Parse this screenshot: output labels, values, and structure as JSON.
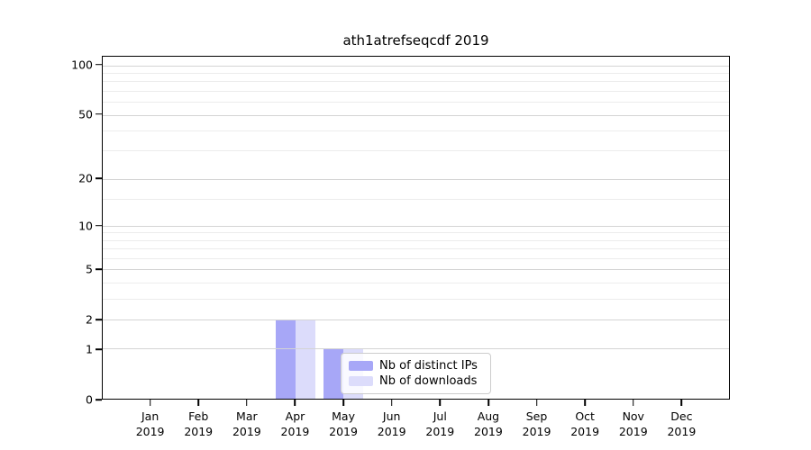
{
  "chart_data": {
    "type": "bar",
    "title": "ath1atrefseqcdf 2019",
    "categories": [
      "Jan",
      "Feb",
      "Mar",
      "Apr",
      "May",
      "Jun",
      "Jul",
      "Aug",
      "Sep",
      "Oct",
      "Nov",
      "Dec"
    ],
    "x_year": "2019",
    "series": [
      {
        "name": "Nb of distinct IPs",
        "color": "#a7a7f7",
        "values": [
          0,
          0,
          0,
          2,
          1,
          0,
          0,
          0,
          0,
          0,
          0,
          0
        ]
      },
      {
        "name": "Nb of downloads",
        "color": "#dcdcfb",
        "values": [
          0,
          0,
          0,
          2,
          1,
          0,
          0,
          0,
          0,
          0,
          0,
          0
        ]
      }
    ],
    "yscale": "log1p",
    "ylim": [
      0,
      113
    ],
    "y_ticks": [
      0,
      1,
      2,
      5,
      10,
      20,
      50,
      100
    ],
    "y_minor_ticks": [
      3,
      4,
      6,
      7,
      8,
      9,
      15,
      30,
      40,
      60,
      70,
      80,
      90
    ],
    "legend_position": "bottom-center",
    "grid": "horizontal",
    "colors": {
      "grid_major": "#d4d4d4",
      "grid_minor": "#ececec",
      "axis": "#000000",
      "background": "#ffffff"
    }
  }
}
